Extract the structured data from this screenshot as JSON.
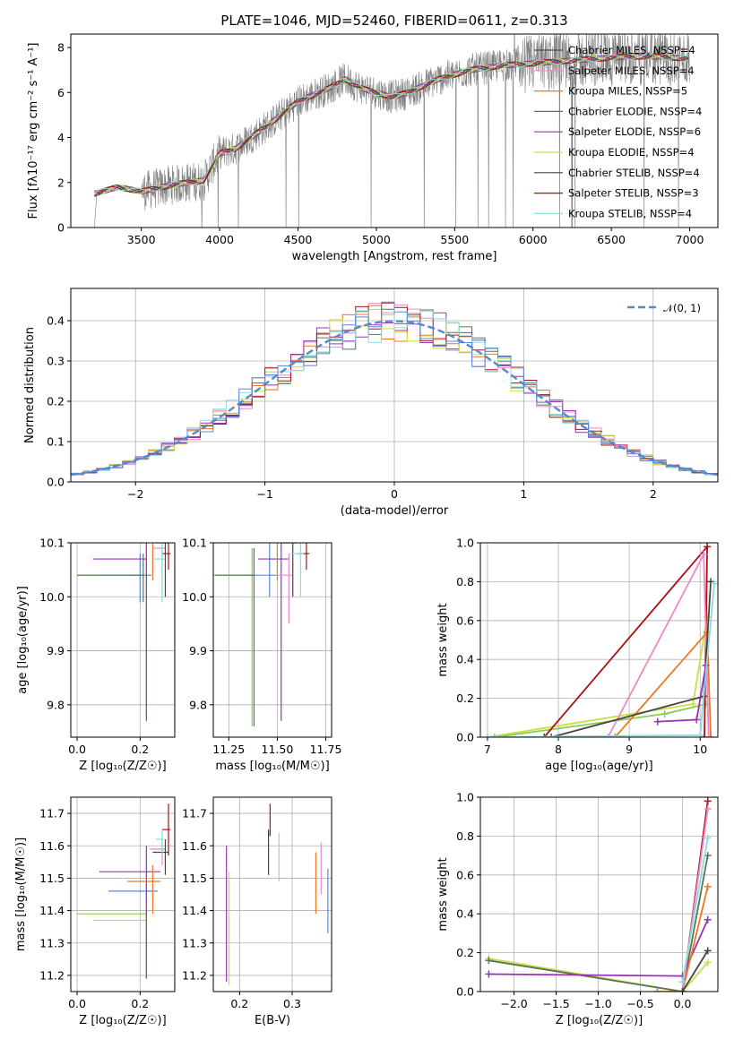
{
  "title": "PLATE=1046, MJD=52460, FIBERID=0611, z=0.313",
  "colors": [
    "#4a4a4a",
    "#ee88cc",
    "#ee7722",
    "#557755",
    "#9933bb",
    "#ccdd44",
    "#444444",
    "#aa1111",
    "#88dddd",
    "#5588dd",
    "#88cc55"
  ],
  "chart_data": [
    {
      "type": "line",
      "title": "PLATE=1046, MJD=52460, FIBERID=0611, z=0.313",
      "xlabel": "wavelength [Angstrom, rest frame]",
      "ylabel": "Flux [fλ10⁻¹⁷ erg cm⁻² s⁻¹ A⁻¹]",
      "xlim": [
        3050,
        7180
      ],
      "ylim": [
        0,
        8.6
      ],
      "xticks": [
        3500,
        4000,
        4500,
        5000,
        5500,
        6000,
        6500,
        7000
      ],
      "yticks": [
        0,
        2,
        4,
        6,
        8
      ],
      "grid": false,
      "legend": "right",
      "continuum": {
        "x": [
          3200,
          3350,
          3500,
          3700,
          3900,
          4000,
          4100,
          4300,
          4500,
          4700,
          4800,
          4900,
          5000,
          5100,
          5200,
          5400,
          5600,
          5800,
          6000,
          6200,
          6400,
          6600,
          6800,
          7000
        ],
        "y": [
          1.5,
          1.8,
          1.6,
          1.9,
          2.1,
          3.3,
          3.5,
          4.5,
          5.6,
          6.2,
          6.6,
          6.2,
          6.0,
          5.8,
          6.0,
          6.6,
          7.0,
          7.2,
          7.3,
          7.4,
          7.5,
          7.6,
          7.6,
          7.5
        ]
      },
      "series": [
        {
          "name": "Chabrier MILES, NSSP=4",
          "color": "#4a4a4a"
        },
        {
          "name": "Salpeter MILES, NSSP=4",
          "color": "#ee88cc"
        },
        {
          "name": "Kroupa MILES, NSSP=5",
          "color": "#ee7722"
        },
        {
          "name": "Chabrier ELODIE, NSSP=4",
          "color": "#557755"
        },
        {
          "name": "Salpeter ELODIE, NSSP=6",
          "color": "#9933bb"
        },
        {
          "name": "Kroupa ELODIE, NSSP=4",
          "color": "#ccdd44"
        },
        {
          "name": "Chabrier STELIB, NSSP=4",
          "color": "#444444"
        },
        {
          "name": "Salpeter STELIB, NSSP=3",
          "color": "#aa1111"
        },
        {
          "name": "Kroupa STELIB, NSSP=4",
          "color": "#88dddd"
        }
      ]
    },
    {
      "type": "line",
      "xlabel": "(data-model)/error",
      "ylabel": "Normed distribution",
      "xlim": [
        -2.5,
        2.5
      ],
      "ylim": [
        0,
        0.48
      ],
      "xticks": [
        -2,
        -1,
        0,
        1,
        2
      ],
      "yticks": [
        0.0,
        0.1,
        0.2,
        0.3,
        0.4
      ],
      "grid": true,
      "legend": "top-right",
      "normal": {
        "name": "𝒩(0, 1)",
        "mu": 0,
        "sigma": 1,
        "color": "#5588cc"
      },
      "hist_bins": {
        "start": -2.5,
        "width": 0.1,
        "count": 50
      },
      "hist_series": [
        {
          "color": "#557755"
        },
        {
          "color": "#ee88cc"
        },
        {
          "color": "#ee7722"
        },
        {
          "color": "#9933bb"
        },
        {
          "color": "#ccdd44"
        },
        {
          "color": "#aa1111"
        },
        {
          "color": "#88dddd"
        },
        {
          "color": "#5588dd"
        }
      ]
    },
    {
      "type": "scatter",
      "xlabel": "Z [log₁₀(Z/Z☉)]",
      "ylabel": "age  [log₁₀(age/yr)]",
      "xlim": [
        -0.02,
        0.31
      ],
      "ylim": [
        9.74,
        10.1
      ],
      "xticks": [
        0.0,
        0.2
      ],
      "yticks": [
        9.8,
        9.9,
        10.0,
        10.1
      ],
      "grid": true,
      "points": [
        {
          "x": 0.22,
          "y": 10.04,
          "xerr": 0.22,
          "yerr": [
            0.26,
            0.05
          ],
          "color": "#88cc55"
        },
        {
          "x": 0.2,
          "y": 10.04,
          "xerr": 0.12,
          "yerr": [
            0.05,
            0.04
          ],
          "color": "#5588dd"
        },
        {
          "x": 0.21,
          "y": 10.04,
          "xerr": 0.21,
          "yerr": [
            0.05,
            0.04
          ],
          "color": "#557755"
        },
        {
          "x": 0.22,
          "y": 10.07,
          "xerr": 0.17,
          "yerr": [
            0.3,
            0.05
          ],
          "color": "#9933bb"
        },
        {
          "x": 0.24,
          "y": 10.13,
          "xerr": 0.07,
          "yerr": [
            0.1,
            0.05
          ],
          "color": "#ee7722"
        },
        {
          "x": 0.27,
          "y": 10.09,
          "xerr": 0.03,
          "yerr": [
            0.09,
            0.04
          ],
          "color": "#ee88cc"
        },
        {
          "x": 0.28,
          "y": 10.1,
          "xerr": 0.03,
          "yerr": [
            0.1,
            0.04
          ],
          "color": "#444444"
        },
        {
          "x": 0.29,
          "y": 10.08,
          "xerr": 0.02,
          "yerr": [
            0.03,
            0.06
          ],
          "color": "#aa1111"
        },
        {
          "x": 0.27,
          "y": 10.07,
          "xerr": 0.03,
          "yerr": [
            0.08,
            0.06
          ],
          "color": "#88dddd"
        }
      ]
    },
    {
      "type": "scatter",
      "xlabel": "mass [log₁₀(M/M☉)]",
      "ylabel": "",
      "xlim": [
        11.17,
        11.78
      ],
      "ylim": [
        9.74,
        10.1
      ],
      "xticks": [
        11.25,
        11.5,
        11.75
      ],
      "yticks": [
        9.8,
        9.9,
        10.0,
        10.1
      ],
      "grid": true,
      "points": [
        {
          "x": 11.37,
          "y": 10.04,
          "xerr": 0.2,
          "yerr": [
            0.28,
            0.05
          ],
          "color": "#88cc55"
        },
        {
          "x": 11.46,
          "y": 10.04,
          "xerr": 0.12,
          "yerr": [
            0.04,
            0.08
          ],
          "color": "#5588dd"
        },
        {
          "x": 11.38,
          "y": 10.04,
          "xerr": 0.2,
          "yerr": [
            0.28,
            0.05
          ],
          "color": "#557755"
        },
        {
          "x": 11.52,
          "y": 10.07,
          "xerr": 0.12,
          "yerr": [
            0.3,
            0.05
          ],
          "color": "#9933bb"
        },
        {
          "x": 11.5,
          "y": 10.13,
          "xerr": 0.08,
          "yerr": [
            0.1,
            0.05
          ],
          "color": "#ee7722"
        },
        {
          "x": 11.56,
          "y": 10.04,
          "xerr": 0.07,
          "yerr": [
            0.09,
            0.04
          ],
          "color": "#ee88cc"
        },
        {
          "x": 11.58,
          "y": 10.1,
          "xerr": 0.06,
          "yerr": [
            0.1,
            0.04
          ],
          "color": "#444444"
        },
        {
          "x": 11.65,
          "y": 10.08,
          "xerr": 0.05,
          "yerr": [
            0.03,
            0.06
          ],
          "color": "#aa1111"
        },
        {
          "x": 11.62,
          "y": 10.08,
          "xerr": 0.05,
          "yerr": [
            0.08,
            0.06
          ],
          "color": "#88dddd"
        }
      ]
    },
    {
      "type": "line",
      "xlabel": "age  [log₁₀(age/yr)]",
      "ylabel": "mass weight",
      "xlim": [
        6.9,
        10.25
      ],
      "ylim": [
        0,
        1
      ],
      "xticks": [
        7,
        8,
        9,
        10
      ],
      "yticks": [
        0.0,
        0.2,
        0.4,
        0.6,
        0.8,
        1.0
      ],
      "grid": true,
      "series": [
        {
          "color": "#ccdd44",
          "x": [
            7.0,
            9.9,
            10.1
          ],
          "y": [
            0.0,
            0.17,
            0.62
          ]
        },
        {
          "color": "#88cc55",
          "x": [
            7.1,
            9.5,
            10.08
          ],
          "y": [
            0.0,
            0.12,
            0.17
          ]
        },
        {
          "color": "#aa1111",
          "x": [
            7.8,
            10.1,
            10.06
          ],
          "y": [
            0.0,
            0.98,
            0.0
          ]
        },
        {
          "color": "#ee88cc",
          "x": [
            8.7,
            10.05,
            10.12
          ],
          "y": [
            0.0,
            0.94,
            0.0
          ]
        },
        {
          "color": "#ee7722",
          "x": [
            8.8,
            10.1,
            10.15
          ],
          "y": [
            0.0,
            0.54,
            0.0
          ]
        },
        {
          "color": "#444444",
          "x": [
            7.9,
            10.05,
            10.15
          ],
          "y": [
            0.0,
            0.21,
            0.8
          ]
        },
        {
          "color": "#9933bb",
          "x": [
            9.4,
            9.95,
            10.08
          ],
          "y": [
            0.08,
            0.09,
            0.37
          ]
        },
        {
          "color": "#88dddd",
          "x": [
            7.0,
            10.0,
            10.2
          ],
          "y": [
            0.0,
            0.01,
            0.79
          ]
        }
      ]
    },
    {
      "type": "scatter",
      "xlabel": "Z [log₁₀(Z/Z☉)]",
      "ylabel": "mass [log₁₀(M/M☉)]",
      "xlim": [
        -0.02,
        0.31
      ],
      "ylim": [
        11.15,
        11.75
      ],
      "xticks": [
        0.0,
        0.2
      ],
      "yticks": [
        11.2,
        11.3,
        11.4,
        11.5,
        11.6,
        11.7
      ],
      "grid": true,
      "points": [
        {
          "x": 0.22,
          "y": 11.37,
          "xerr": 0.17,
          "yerr": [
            0.18,
            0.02
          ],
          "color": "#ccdd44"
        },
        {
          "x": 0.22,
          "y": 11.39,
          "xerr": 0.22,
          "yerr": [
            0.2,
            0.02
          ],
          "color": "#88cc55"
        },
        {
          "x": 0.22,
          "y": 11.46,
          "xerr": 0.12,
          "yerr": [
            0.03,
            0.02
          ],
          "color": "#5588dd"
        },
        {
          "x": 0.22,
          "y": 11.52,
          "xerr": 0.15,
          "yerr": [
            0.33,
            0.08
          ],
          "color": "#9933bb"
        },
        {
          "x": 0.24,
          "y": 11.49,
          "xerr": 0.08,
          "yerr": [
            0.1,
            0.05
          ],
          "color": "#ee7722"
        },
        {
          "x": 0.27,
          "y": 11.59,
          "xerr": 0.04,
          "yerr": [
            0.05,
            0.03
          ],
          "color": "#ee88cc"
        },
        {
          "x": 0.28,
          "y": 11.58,
          "xerr": 0.04,
          "yerr": [
            0.07,
            0.04
          ],
          "color": "#444444"
        },
        {
          "x": 0.29,
          "y": 11.65,
          "xerr": 0.02,
          "yerr": [
            0.08,
            0.08
          ],
          "color": "#aa1111"
        },
        {
          "x": 0.27,
          "y": 11.62,
          "xerr": 0.02,
          "yerr": [
            0.05,
            0.03
          ],
          "color": "#88dddd"
        }
      ]
    },
    {
      "type": "scatter",
      "xlabel": "E(B-V)",
      "ylabel": "",
      "xlim": [
        0.15,
        0.375
      ],
      "ylim": [
        11.15,
        11.75
      ],
      "xticks": [
        0.2,
        0.3
      ],
      "yticks": [
        11.2,
        11.3,
        11.4,
        11.5,
        11.6,
        11.7
      ],
      "grid": true,
      "points": [
        {
          "x": 0.175,
          "y": 11.39,
          "yerr": [
            0.21,
            0.21
          ],
          "color": "#9933bb"
        },
        {
          "x": 0.18,
          "y": 11.32,
          "yerr": [
            0.15,
            0.2
          ],
          "color": "#ccdd44"
        },
        {
          "x": 0.255,
          "y": 11.58,
          "yerr": [
            0.07,
            0.07
          ],
          "color": "#444444"
        },
        {
          "x": 0.258,
          "y": 11.68,
          "yerr": [
            0.05,
            0.05
          ],
          "color": "#aa1111"
        },
        {
          "x": 0.275,
          "y": 11.56,
          "yerr": [
            0.07,
            0.08
          ],
          "color": "#88dddd"
        },
        {
          "x": 0.345,
          "y": 11.48,
          "yerr": [
            0.09,
            0.1
          ],
          "color": "#ee7722"
        },
        {
          "x": 0.355,
          "y": 11.53,
          "yerr": [
            0.08,
            0.08
          ],
          "color": "#ee88cc"
        },
        {
          "x": 0.368,
          "y": 11.43,
          "yerr": [
            0.1,
            0.1
          ],
          "color": "#5588dd"
        }
      ]
    },
    {
      "type": "line",
      "xlabel": "Z [log₁₀(Z/Z☉)]",
      "ylabel": "mass weight",
      "xlim": [
        -2.4,
        0.42
      ],
      "ylim": [
        0,
        1
      ],
      "xticks": [
        -2.0,
        -1.5,
        -1.0,
        -0.5,
        0.0
      ],
      "yticks": [
        0.0,
        0.2,
        0.4,
        0.6,
        0.8,
        1.0
      ],
      "grid": true,
      "series": [
        {
          "color": "#ccdd44",
          "x": [
            -2.3,
            0.0,
            0.3
          ],
          "y": [
            0.17,
            0.0,
            0.15
          ]
        },
        {
          "color": "#557755",
          "x": [
            -2.3,
            0.0,
            0.3
          ],
          "y": [
            0.16,
            0.0,
            0.7
          ]
        },
        {
          "color": "#9933bb",
          "x": [
            -2.3,
            0.0,
            0.3
          ],
          "y": [
            0.09,
            0.08,
            0.37
          ]
        },
        {
          "color": "#ee7722",
          "x": [
            -0.3,
            0.0,
            0.3
          ],
          "y": [
            0.0,
            0.0,
            0.54
          ]
        },
        {
          "color": "#aa1111",
          "x": [
            0.0,
            0.3
          ],
          "y": [
            0.0,
            0.98
          ]
        },
        {
          "color": "#ee88cc",
          "x": [
            0.0,
            0.3
          ],
          "y": [
            0.0,
            0.94
          ]
        },
        {
          "color": "#88dddd",
          "x": [
            0.0,
            0.3
          ],
          "y": [
            0.05,
            0.79
          ]
        },
        {
          "color": "#444444",
          "x": [
            0.0,
            0.3
          ],
          "y": [
            0.0,
            0.21
          ]
        }
      ]
    }
  ]
}
